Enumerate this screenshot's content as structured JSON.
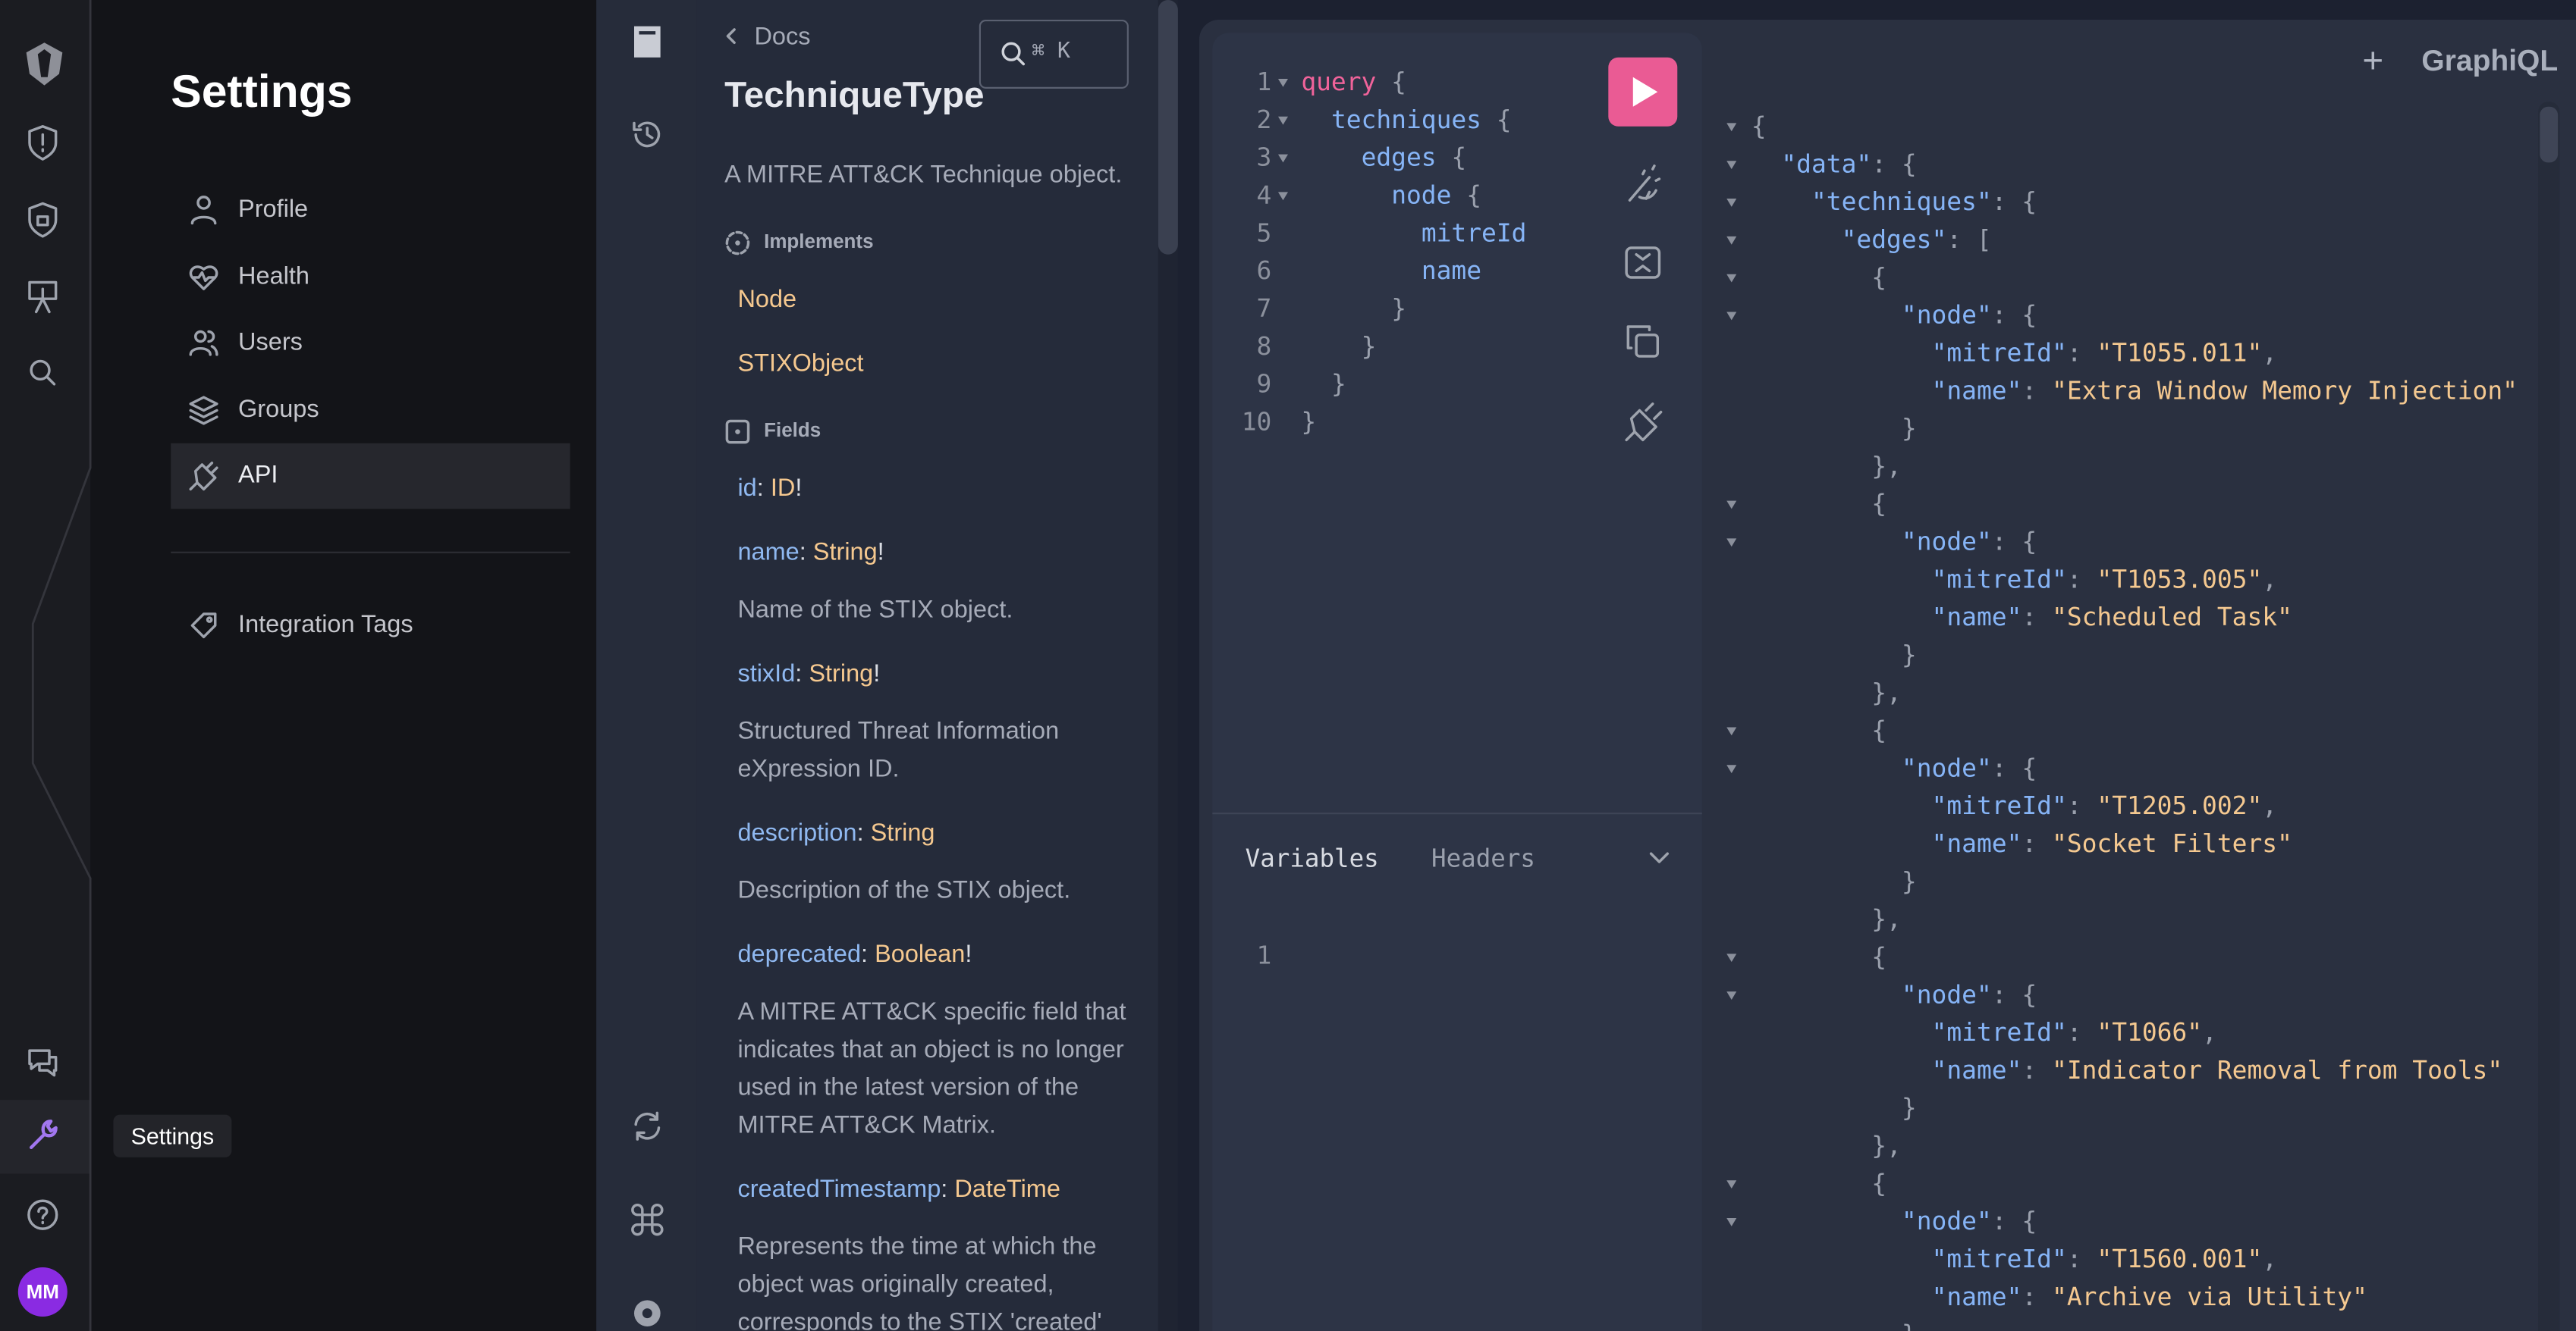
{
  "rail": {
    "avatar": "MM",
    "tooltip": "Settings"
  },
  "settings": {
    "title": "Settings",
    "items": [
      "Profile",
      "Health",
      "Users",
      "Groups",
      "API"
    ],
    "integrations": "Integration Tags"
  },
  "docs": {
    "back": "Docs",
    "search_hint": "⌘ K",
    "title": "TechniqueType",
    "description": "A MITRE ATT&CK Technique object.",
    "implements_heading": "Implements",
    "implements": [
      "Node",
      "STIXObject"
    ],
    "fields_heading": "Fields",
    "fields": [
      {
        "label": [
          "id",
          ": ",
          "ID",
          "!"
        ]
      },
      {
        "label": [
          "name",
          ": ",
          "String",
          "!"
        ],
        "description": "Name of the STIX object."
      },
      {
        "label": [
          "stixId",
          ": ",
          "String",
          "!"
        ],
        "description": "Structured Threat Information eXpression ID."
      },
      {
        "label": [
          "description",
          ": ",
          "String"
        ],
        "description": "Description of the STIX object."
      },
      {
        "label": [
          "deprecated",
          ": ",
          "Boolean",
          "!"
        ],
        "description": "A MITRE ATT&CK specific field that indicates that an object is no longer used in the latest version of the MITRE ATT&CK Matrix."
      },
      {
        "label": [
          "createdTimestamp",
          ": ",
          "DateTime"
        ],
        "description": "Represents the time at which the object was originally created, corresponds to the STIX 'created' property."
      }
    ]
  },
  "header": {
    "logo": "GraphiQL"
  },
  "query": {
    "lines": [
      {
        "n": 1,
        "tokens": [
          "query",
          " {"
        ]
      },
      {
        "n": 2,
        "tokens": [
          "techniques",
          " {"
        ]
      },
      {
        "n": 3,
        "tokens": [
          "edges",
          " {"
        ]
      },
      {
        "n": 4,
        "tokens": [
          "node",
          " {"
        ]
      },
      {
        "n": 5,
        "tokens": [
          "mitreId"
        ]
      },
      {
        "n": 6,
        "tokens": [
          "name"
        ]
      },
      {
        "n": 7,
        "tokens": [
          "}"
        ]
      },
      {
        "n": 8,
        "tokens": [
          "}"
        ]
      },
      {
        "n": 9,
        "tokens": [
          "}"
        ]
      },
      {
        "n": 10,
        "tokens": [
          "}"
        ]
      }
    ]
  },
  "variables": {
    "tabs": [
      "Variables",
      "Headers"
    ],
    "lines": [
      {
        "n": 1,
        "tokens": []
      }
    ]
  },
  "result": {
    "lines": [
      [
        "{"
      ],
      [
        "\"data\"",
        ": {"
      ],
      [
        "\"techniques\"",
        ": {"
      ],
      [
        "\"edges\"",
        ": ["
      ],
      [
        "{"
      ],
      [
        "\"node\"",
        ": {"
      ],
      [
        "\"mitreId\"",
        ": ",
        "\"T1055.011\"",
        ","
      ],
      [
        "\"name\"",
        ": ",
        "\"Extra Window Memory Injection\""
      ],
      [
        "}"
      ],
      [
        "},"
      ],
      [
        "{"
      ],
      [
        "\"node\"",
        ": {"
      ],
      [
        "\"mitreId\"",
        ": ",
        "\"T1053.005\"",
        ","
      ],
      [
        "\"name\"",
        ": ",
        "\"Scheduled Task\""
      ],
      [
        "}"
      ],
      [
        "},"
      ],
      [
        "{"
      ],
      [
        "\"node\"",
        ": {"
      ],
      [
        "\"mitreId\"",
        ": ",
        "\"T1205.002\"",
        ","
      ],
      [
        "\"name\"",
        ": ",
        "\"Socket Filters\""
      ],
      [
        "}"
      ],
      [
        "},"
      ],
      [
        "{"
      ],
      [
        "\"node\"",
        ": {"
      ],
      [
        "\"mitreId\"",
        ": ",
        "\"T1066\"",
        ","
      ],
      [
        "\"name\"",
        ": ",
        "\"Indicator Removal from Tools\""
      ],
      [
        "}"
      ],
      [
        "},"
      ],
      [
        "{"
      ],
      [
        "\"node\"",
        ": {"
      ],
      [
        "\"mitreId\"",
        ": ",
        "\"T1560.001\"",
        ","
      ],
      [
        "\"name\"",
        ": ",
        "\"Archive via Utility\""
      ],
      [
        "}"
      ]
    ]
  }
}
